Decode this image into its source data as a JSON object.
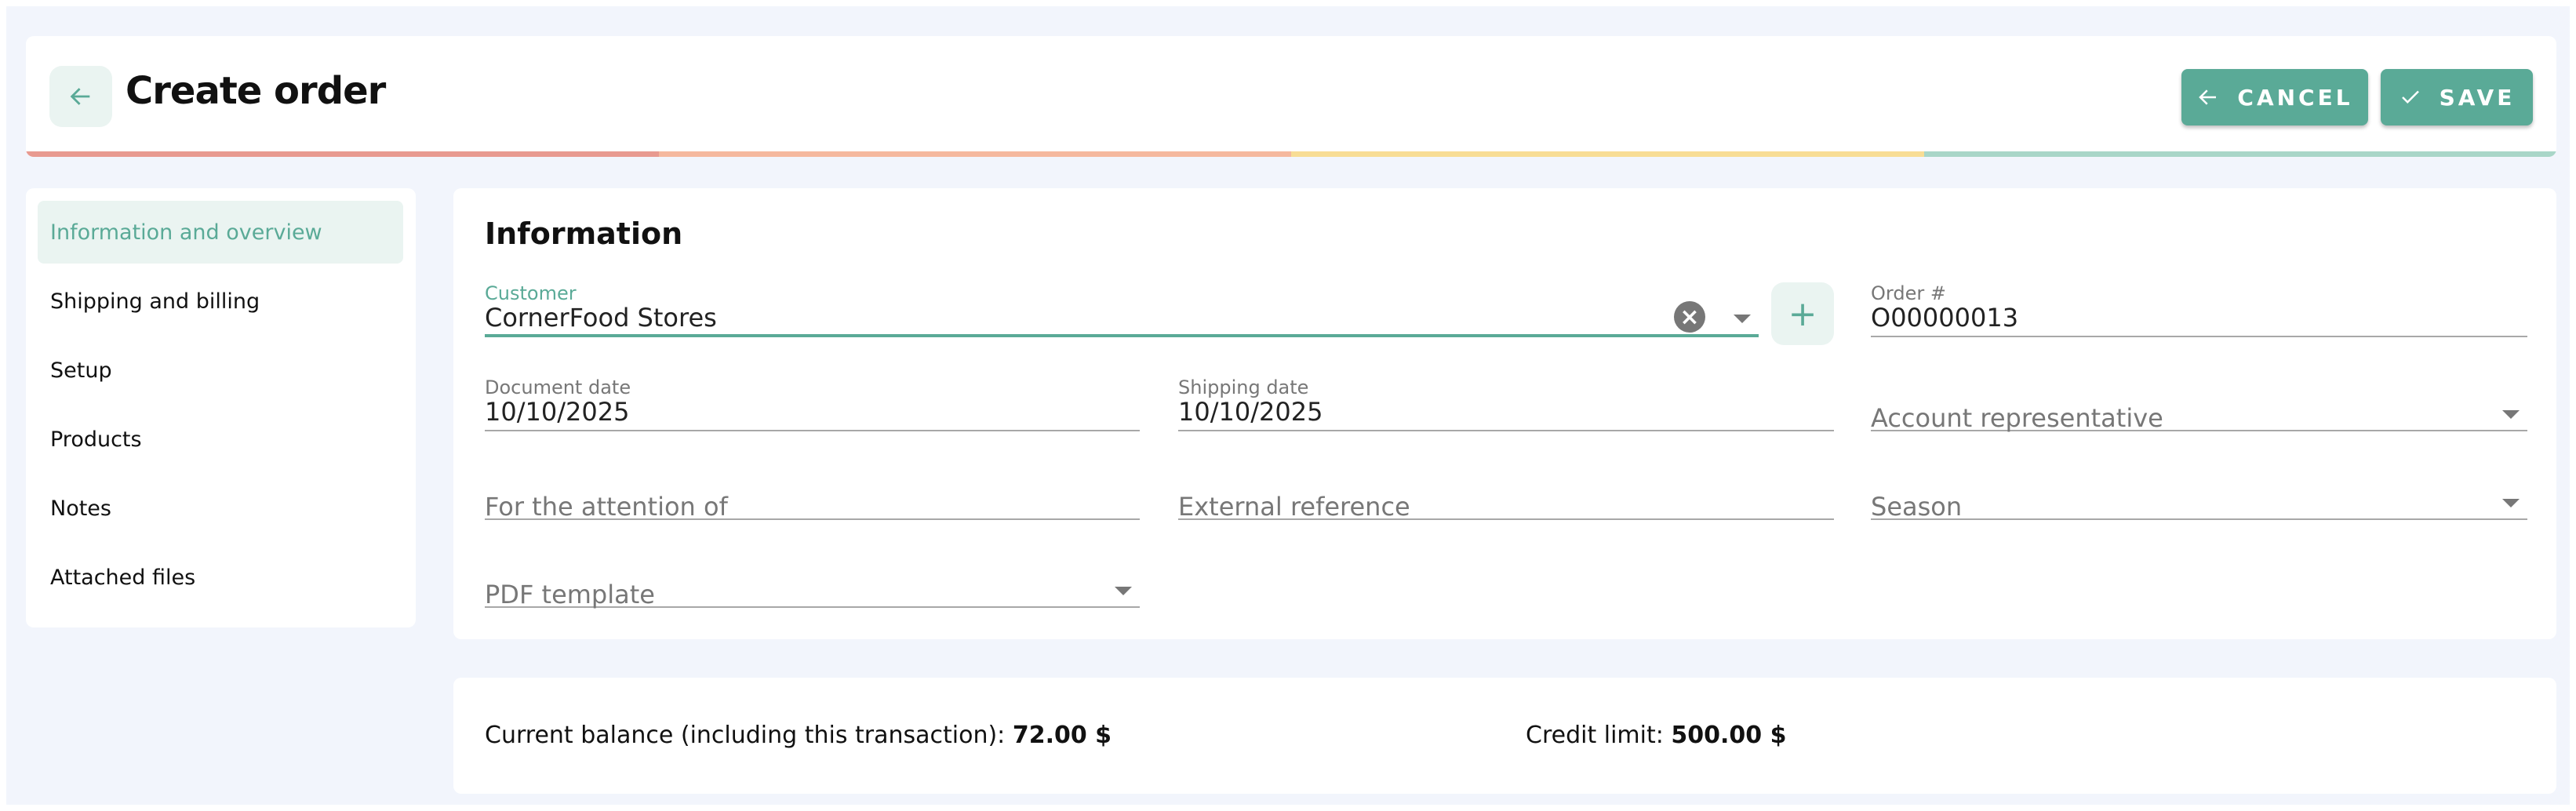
{
  "header": {
    "title": "Create order",
    "cancel_label": "CANCEL",
    "save_label": "SAVE",
    "progress_colors": [
      "#e89a90",
      "#f5b89e",
      "#f8dd95",
      "#a9d6c8"
    ]
  },
  "sidebar": {
    "items": [
      {
        "label": "Information and overview",
        "active": true
      },
      {
        "label": "Shipping and billing"
      },
      {
        "label": "Setup"
      },
      {
        "label": "Products"
      },
      {
        "label": "Notes"
      },
      {
        "label": "Attached files"
      }
    ]
  },
  "main": {
    "title": "Information",
    "customer": {
      "label": "Customer",
      "value": "CornerFood Stores"
    },
    "order_no": {
      "label": "Order #",
      "value": "O00000013"
    },
    "document_date": {
      "label": "Document date",
      "value": "10/10/2025"
    },
    "shipping_date": {
      "label": "Shipping date",
      "value": "10/10/2025"
    },
    "account_rep": {
      "placeholder": "Account representative"
    },
    "attention": {
      "placeholder": "For the attention of"
    },
    "external_ref": {
      "placeholder": "External reference"
    },
    "season": {
      "placeholder": "Season"
    },
    "pdf_template": {
      "placeholder": "PDF template"
    }
  },
  "footer": {
    "balance_label": "Current balance (including this transaction):",
    "balance_value": "72.00 $",
    "credit_label": "Credit limit:",
    "credit_value": "500.00 $"
  },
  "colors": {
    "accent": "#5aaa97",
    "background": "#f2f5fc"
  }
}
